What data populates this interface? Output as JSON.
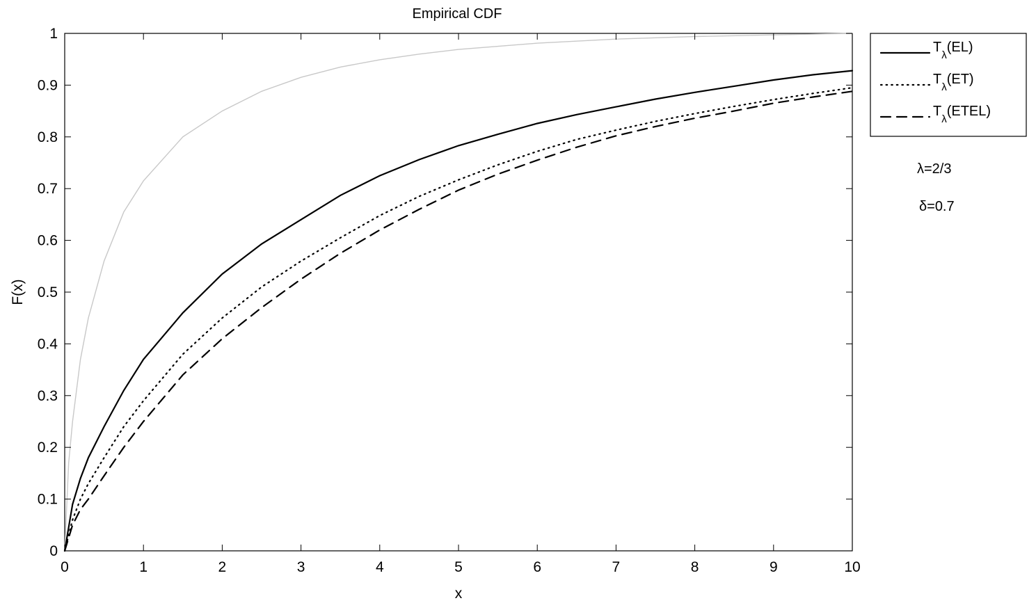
{
  "chart_data": {
    "type": "line",
    "title": "Empirical CDF",
    "xlabel": "x",
    "ylabel": "F(x)",
    "xlim": [
      0,
      10
    ],
    "ylim": [
      0,
      1
    ],
    "xticks": [
      "0",
      "1",
      "2",
      "3",
      "4",
      "5",
      "6",
      "7",
      "8",
      "9",
      "10"
    ],
    "yticks": [
      "0",
      "0.1",
      "0.2",
      "0.3",
      "0.4",
      "0.5",
      "0.6",
      "0.7",
      "0.8",
      "0.9",
      "1"
    ],
    "grid": false,
    "legend_position": "outside-top-right",
    "series": [
      {
        "name": "T_λ(EL)",
        "legend_main": "T",
        "legend_sub": "λ",
        "legend_tail": "(EL)",
        "style": "solid",
        "color": "#000000",
        "in_legend": true,
        "x": [
          0,
          0.1,
          0.2,
          0.3,
          0.5,
          0.75,
          1,
          1.5,
          2,
          2.5,
          3,
          3.5,
          4,
          4.5,
          5,
          5.5,
          6,
          6.5,
          7,
          7.5,
          8,
          8.5,
          9,
          9.5,
          10
        ],
        "y": [
          0,
          0.09,
          0.14,
          0.18,
          0.24,
          0.31,
          0.37,
          0.46,
          0.535,
          0.593,
          0.64,
          0.687,
          0.725,
          0.756,
          0.783,
          0.805,
          0.826,
          0.843,
          0.858,
          0.873,
          0.886,
          0.898,
          0.91,
          0.92,
          0.928
        ]
      },
      {
        "name": "T_λ(ET)",
        "legend_main": "T",
        "legend_sub": "λ",
        "legend_tail": "(ET)",
        "style": "dotted",
        "color": "#000000",
        "in_legend": true,
        "x": [
          0,
          0.1,
          0.2,
          0.3,
          0.5,
          0.75,
          1,
          1.5,
          2,
          2.5,
          3,
          3.5,
          4,
          4.5,
          5,
          5.5,
          6,
          6.5,
          7,
          7.5,
          8,
          8.5,
          9,
          9.5,
          10
        ],
        "y": [
          0,
          0.06,
          0.1,
          0.13,
          0.18,
          0.24,
          0.29,
          0.38,
          0.45,
          0.51,
          0.56,
          0.605,
          0.648,
          0.685,
          0.717,
          0.746,
          0.772,
          0.795,
          0.813,
          0.83,
          0.845,
          0.859,
          0.872,
          0.884,
          0.895
        ]
      },
      {
        "name": "T_λ(ETEL)",
        "legend_main": "T",
        "legend_sub": "λ",
        "legend_tail": "(ETEL)",
        "style": "dashed",
        "color": "#000000",
        "in_legend": true,
        "x": [
          0,
          0.1,
          0.2,
          0.3,
          0.5,
          0.75,
          1,
          1.5,
          2,
          2.5,
          3,
          3.5,
          4,
          4.5,
          5,
          5.5,
          6,
          6.5,
          7,
          7.5,
          8,
          8.5,
          9,
          9.5,
          10
        ],
        "y": [
          0,
          0.05,
          0.08,
          0.1,
          0.145,
          0.2,
          0.25,
          0.34,
          0.41,
          0.47,
          0.525,
          0.575,
          0.62,
          0.66,
          0.697,
          0.728,
          0.755,
          0.78,
          0.802,
          0.82,
          0.836,
          0.85,
          0.865,
          0.877,
          0.888
        ]
      },
      {
        "name": "",
        "style": "solid",
        "color": "#c8c8c8",
        "in_legend": false,
        "x": [
          0,
          0.05,
          0.1,
          0.2,
          0.3,
          0.5,
          0.75,
          1,
          1.5,
          2,
          2.5,
          3,
          3.5,
          4,
          4.5,
          5,
          6,
          7,
          8,
          9,
          10
        ],
        "y": [
          0,
          0.17,
          0.25,
          0.37,
          0.45,
          0.56,
          0.655,
          0.715,
          0.8,
          0.85,
          0.888,
          0.915,
          0.935,
          0.949,
          0.96,
          0.969,
          0.981,
          0.989,
          0.994,
          0.997,
          1.0
        ]
      }
    ],
    "annotations": [
      {
        "name": "lambda",
        "text": "λ=2/3"
      },
      {
        "name": "delta",
        "text": "δ=0.7"
      }
    ]
  }
}
